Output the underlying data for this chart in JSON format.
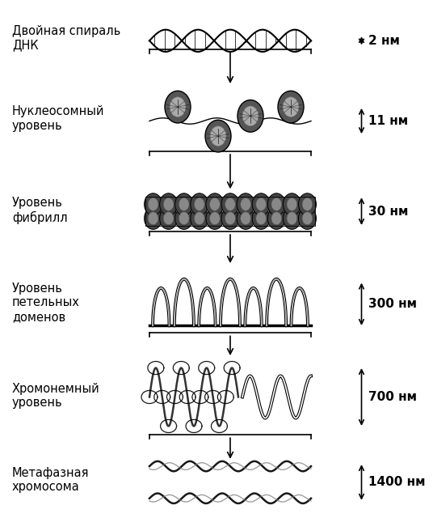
{
  "background_color": "#ffffff",
  "text_color": "#000000",
  "label_fontsize": 10.5,
  "size_fontsize": 11,
  "levels_y": {
    "dna": 0.935,
    "nucleosome": 0.775,
    "fibril": 0.595,
    "loop": 0.415,
    "chromonema": 0.225,
    "metaphase": 0.055
  },
  "labels": {
    "dna": "Двойная спираль\nДНК",
    "nucleosome": "Нуклеосомный\nуровень",
    "fibril": "Уровень\nфибрилл",
    "loop": "Уровень\nпетельных\nдоменов",
    "chromonema": "Хромонемный\nуровень",
    "metaphase": "Метафазная\nхромосома"
  },
  "sizes": {
    "dna": "2 нм",
    "nucleosome": "11 нм",
    "fibril": "30 нм",
    "loop": "300 нм",
    "chromonema": "700 нм",
    "metaphase": "1400 нм"
  }
}
